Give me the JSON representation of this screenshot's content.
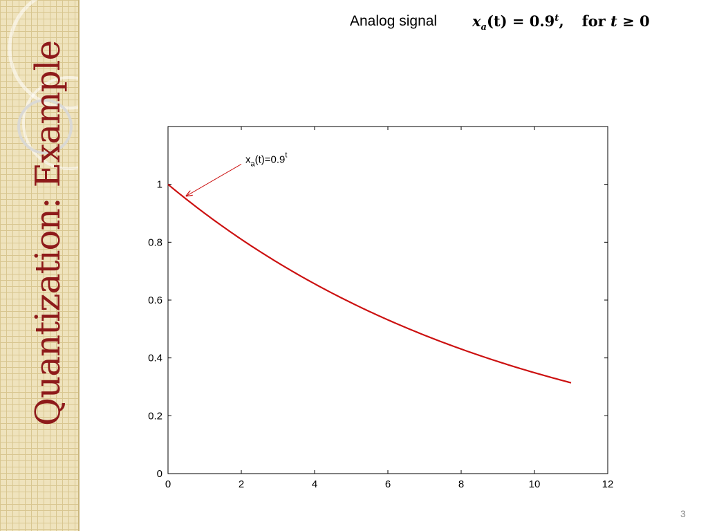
{
  "slide": {
    "title": "Quantization: Example",
    "page_number": "3",
    "header": {
      "label": "Analog signal",
      "formula": {
        "lhs_var": "x",
        "lhs_sub": "a",
        "lhs_arg": "(t) = 0.9",
        "lhs_exp": "t",
        "comma": ",",
        "cond_prefix": "for ",
        "cond_var": "t",
        "cond_rest": " ≥ 0"
      }
    },
    "colors": {
      "sidebar_bg": "#efe3bd",
      "title": "#8e1a1a",
      "series": "#cc1111"
    }
  },
  "chart_data": {
    "type": "line",
    "title": "",
    "xlabel": "",
    "ylabel": "",
    "xlim": [
      0,
      12
    ],
    "ylim": [
      0,
      1.2
    ],
    "xticks": [
      0,
      2,
      4,
      6,
      8,
      10,
      12
    ],
    "xtick_labels": [
      "0",
      "2",
      "4",
      "6",
      "8",
      "10",
      "12"
    ],
    "yticks": [
      0,
      0.2,
      0.4,
      0.6,
      0.8,
      1
    ],
    "ytick_labels": [
      "0",
      "0.2",
      "0.4",
      "0.6",
      "0.8",
      "1"
    ],
    "grid": false,
    "series": [
      {
        "color": "#cc1111",
        "x": [
          0,
          1,
          2,
          3,
          4,
          5,
          6,
          7,
          8,
          9,
          10,
          11
        ],
        "y": [
          1.0,
          0.9,
          0.81,
          0.729,
          0.656,
          0.59,
          0.531,
          0.478,
          0.43,
          0.387,
          0.349,
          0.314
        ]
      }
    ],
    "annotation": {
      "text_base": "x",
      "text_sub": "a",
      "text_mid": "(t)=0.9",
      "text_sup": "t",
      "arrow_from": [
        2.0,
        1.07
      ],
      "arrow_to": [
        0.5,
        0.96
      ]
    }
  }
}
